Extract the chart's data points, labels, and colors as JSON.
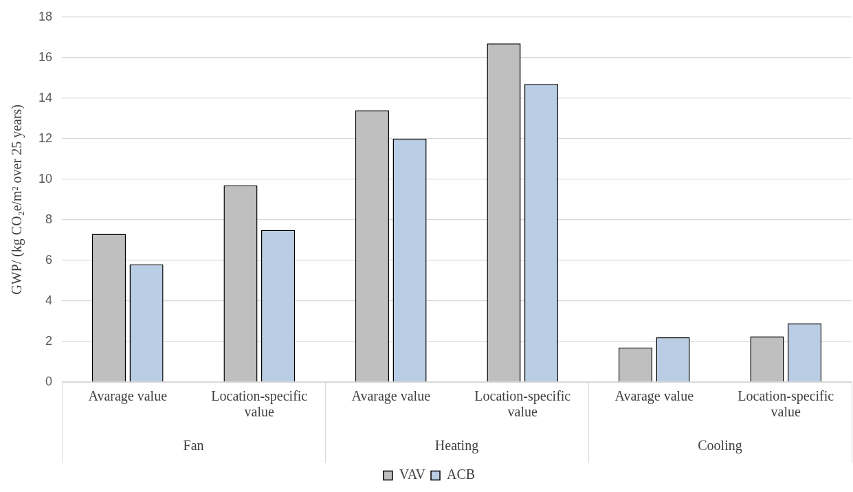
{
  "chart_data": {
    "type": "bar",
    "ylabel": "GWP/ (kg CO₂e/m² over 25 years)",
    "categories": [
      "Avarage value",
      "Location-specific value",
      "Avarage value",
      "Location-specific value",
      "Avarage value",
      "Location-specific value"
    ],
    "series": [
      {
        "name": "VAV",
        "color": "#bfbfbf",
        "values": [
          7.3,
          9.7,
          13.4,
          16.7,
          1.7,
          2.25
        ]
      },
      {
        "name": "ACB",
        "color": "#b9cde5",
        "values": [
          5.8,
          7.5,
          12.0,
          14.7,
          2.2,
          2.9
        ]
      }
    ],
    "ylim": [
      0,
      18
    ],
    "yticks": [
      0,
      2,
      4,
      6,
      8,
      10,
      12,
      14,
      16,
      18
    ],
    "grid": "y",
    "legend": "bottom",
    "annotations": [
      "Fan",
      "Heating",
      "Cooling"
    ]
  }
}
